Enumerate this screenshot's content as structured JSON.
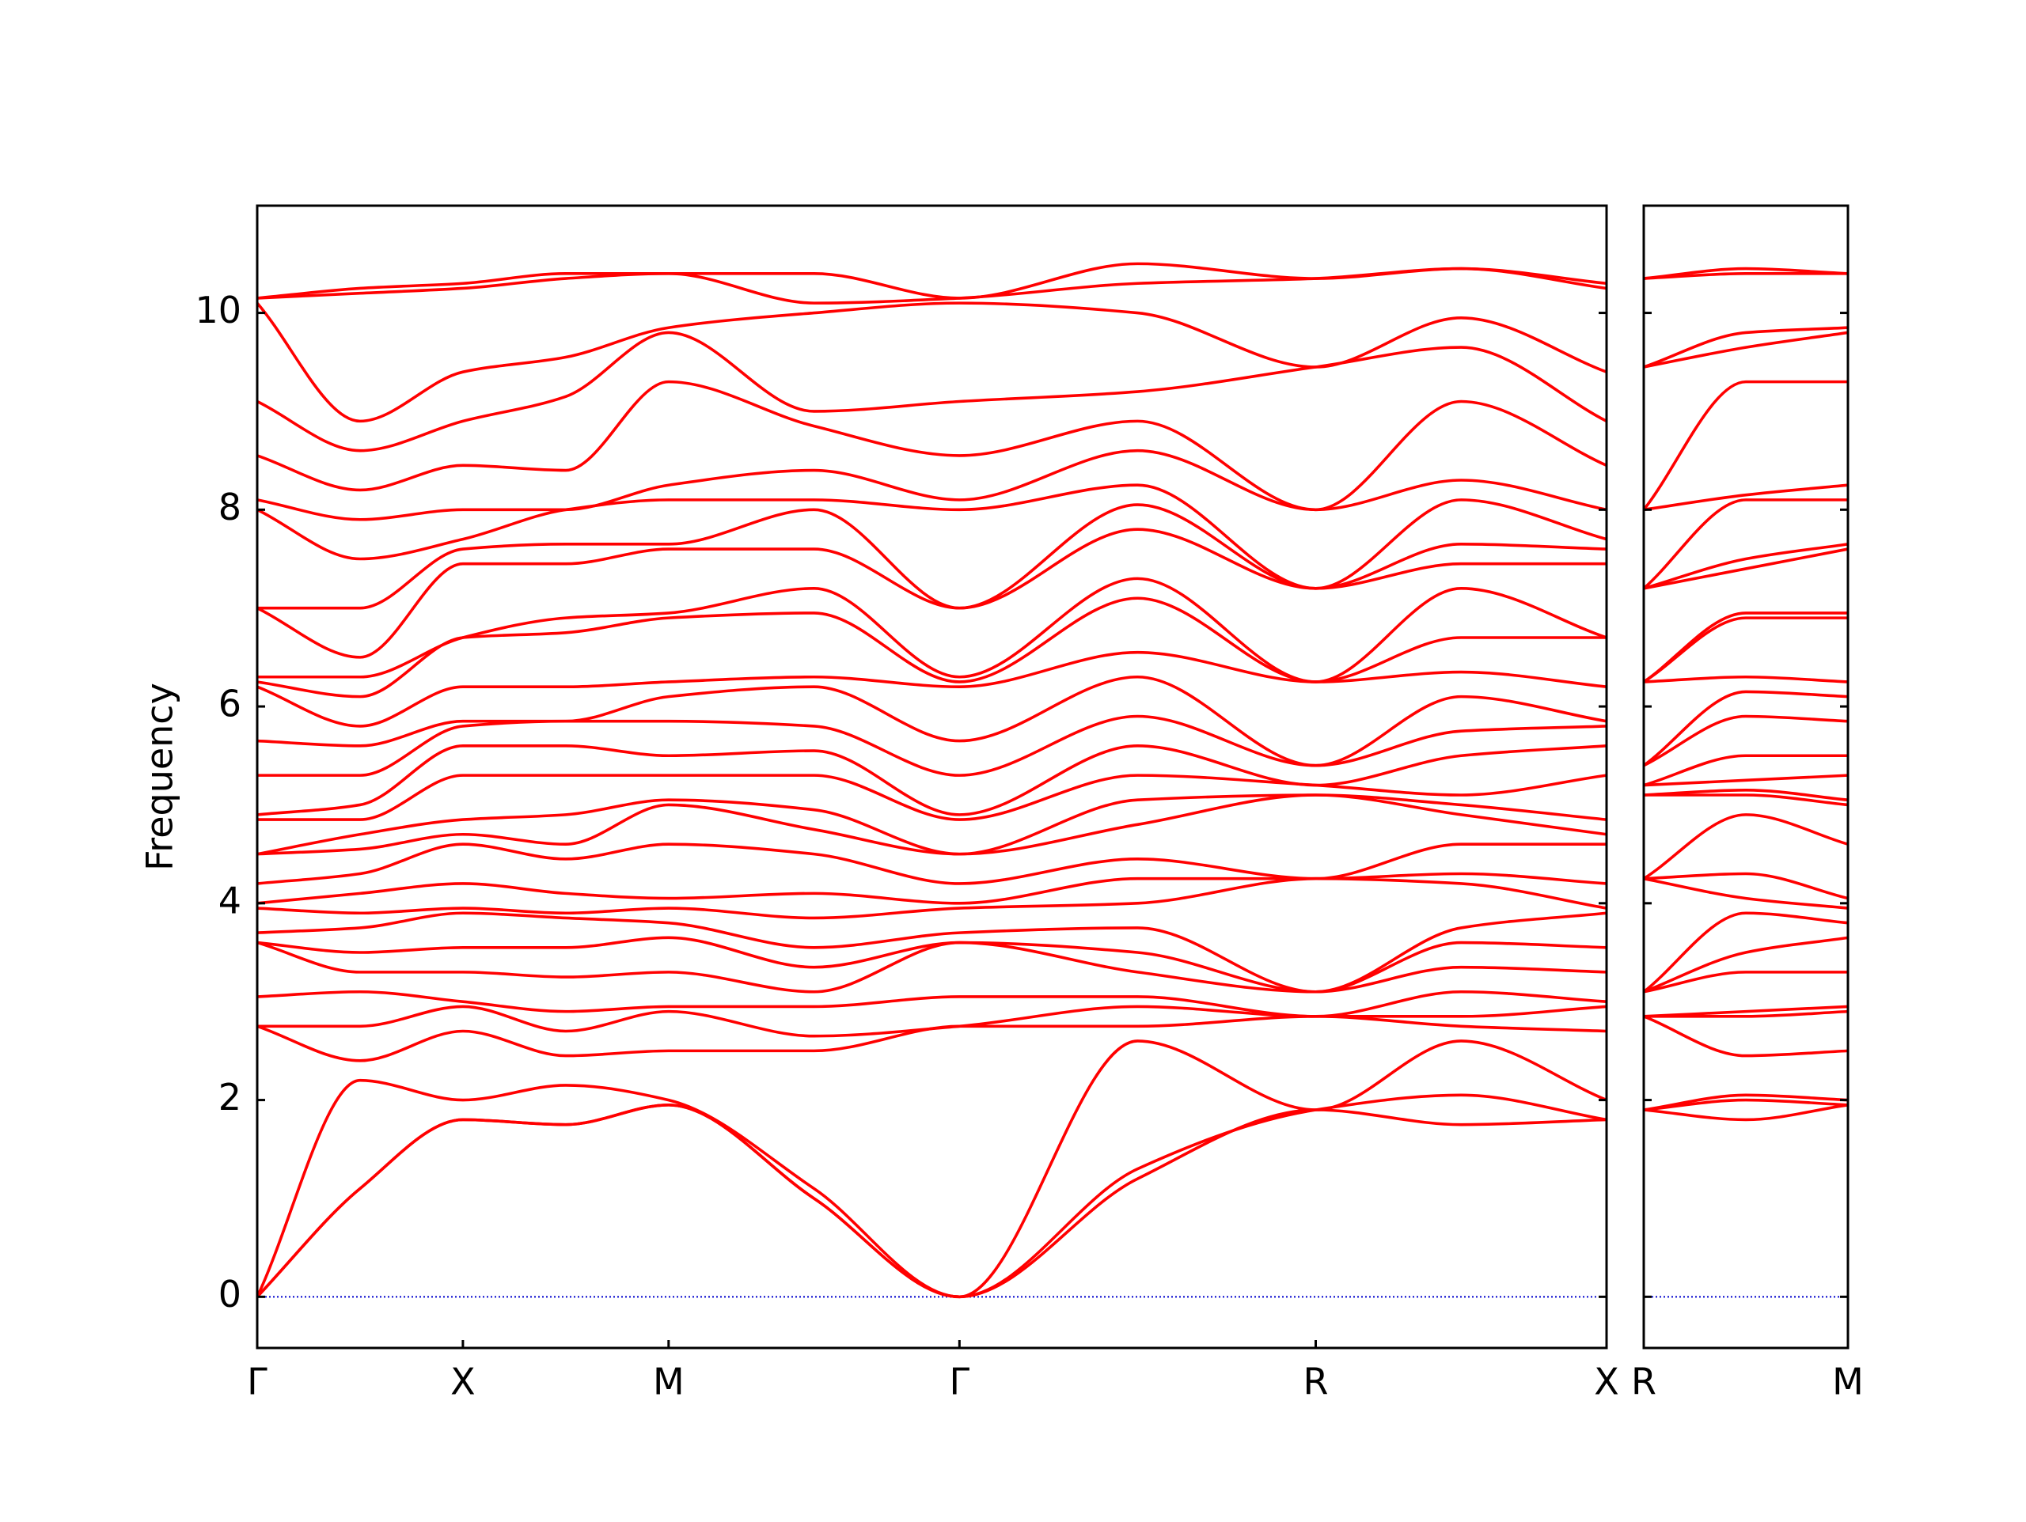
{
  "chart_data": [
    {
      "type": "line",
      "y_label": "Frequency",
      "color": "#ff0000",
      "x": [
        0,
        0.5,
        1,
        1.5,
        2,
        2.707,
        3.414,
        4.28,
        5.146,
        5.853,
        6.56
      ],
      "xlim": [
        0,
        6.56
      ],
      "xticks": [
        {
          "value": 0,
          "label": "Γ"
        },
        {
          "value": 1,
          "label": "X"
        },
        {
          "value": 2,
          "label": "M"
        },
        {
          "value": 3.414,
          "label": "Γ"
        },
        {
          "value": 5.146,
          "label": "R"
        },
        {
          "value": 6.56,
          "label": "X"
        }
      ],
      "ylim": [
        -0.52,
        11.09
      ],
      "yticks": [
        0,
        2,
        4,
        6,
        8,
        10
      ],
      "hline": {
        "value": 0,
        "color": "#0000cc",
        "style": "dotted"
      },
      "series": [
        {
          "values": [
            0,
            1.1,
            1.8,
            1.75,
            1.95,
            1.0,
            0,
            1.2,
            1.9,
            1.75,
            1.8
          ]
        },
        {
          "values": [
            0,
            1.1,
            1.8,
            1.75,
            1.95,
            1.0,
            0,
            1.3,
            1.9,
            2.05,
            1.8
          ]
        },
        {
          "values": [
            0,
            2.2,
            2.0,
            2.15,
            2.0,
            1.1,
            0,
            2.6,
            1.9,
            2.6,
            2.0
          ]
        },
        {
          "values": [
            2.75,
            2.4,
            2.7,
            2.45,
            2.5,
            2.5,
            2.75,
            2.75,
            2.85,
            2.75,
            2.7
          ]
        },
        {
          "values": [
            2.75,
            2.75,
            2.95,
            2.7,
            2.9,
            2.65,
            2.75,
            2.95,
            2.85,
            2.85,
            2.95
          ]
        },
        {
          "values": [
            3.05,
            3.1,
            3.0,
            2.9,
            2.95,
            2.95,
            3.05,
            3.05,
            2.85,
            3.1,
            3.0
          ]
        },
        {
          "values": [
            3.6,
            3.3,
            3.3,
            3.25,
            3.3,
            3.1,
            3.6,
            3.3,
            3.1,
            3.35,
            3.3
          ]
        },
        {
          "values": [
            3.6,
            3.5,
            3.55,
            3.55,
            3.65,
            3.35,
            3.6,
            3.5,
            3.1,
            3.6,
            3.55
          ]
        },
        {
          "values": [
            3.7,
            3.75,
            3.9,
            3.85,
            3.8,
            3.55,
            3.7,
            3.75,
            3.1,
            3.75,
            3.9
          ]
        },
        {
          "values": [
            3.95,
            3.9,
            3.95,
            3.9,
            3.95,
            3.85,
            3.95,
            4.0,
            4.25,
            4.2,
            3.95
          ]
        },
        {
          "values": [
            4.0,
            4.1,
            4.2,
            4.1,
            4.05,
            4.1,
            4.0,
            4.25,
            4.25,
            4.3,
            4.2
          ]
        },
        {
          "values": [
            4.2,
            4.3,
            4.6,
            4.45,
            4.6,
            4.5,
            4.2,
            4.45,
            4.25,
            4.6,
            4.6
          ]
        },
        {
          "values": [
            4.5,
            4.55,
            4.7,
            4.6,
            5.0,
            4.75,
            4.5,
            4.8,
            5.1,
            4.9,
            4.7
          ]
        },
        {
          "values": [
            4.5,
            4.7,
            4.85,
            4.9,
            5.05,
            4.95,
            4.5,
            5.05,
            5.1,
            5.0,
            4.85
          ]
        },
        {
          "values": [
            4.85,
            4.85,
            5.3,
            5.3,
            5.3,
            5.3,
            4.85,
            5.3,
            5.2,
            5.1,
            5.3
          ]
        },
        {
          "values": [
            4.9,
            5.0,
            5.6,
            5.6,
            5.5,
            5.55,
            4.9,
            5.6,
            5.2,
            5.5,
            5.6
          ]
        },
        {
          "values": [
            5.3,
            5.3,
            5.8,
            5.85,
            5.85,
            5.8,
            5.3,
            5.9,
            5.4,
            5.75,
            5.8
          ]
        },
        {
          "values": [
            5.65,
            5.6,
            5.85,
            5.85,
            6.1,
            6.2,
            5.65,
            6.3,
            5.4,
            6.1,
            5.85
          ]
        },
        {
          "values": [
            6.2,
            5.8,
            6.2,
            6.2,
            6.25,
            6.3,
            6.2,
            6.55,
            6.25,
            6.35,
            6.2
          ]
        },
        {
          "values": [
            6.25,
            6.1,
            6.7,
            6.75,
            6.9,
            6.95,
            6.25,
            7.1,
            6.25,
            6.7,
            6.7
          ]
        },
        {
          "values": [
            6.3,
            6.3,
            6.7,
            6.9,
            6.95,
            7.2,
            6.3,
            7.3,
            6.25,
            7.2,
            6.7
          ]
        },
        {
          "values": [
            7.0,
            6.5,
            7.45,
            7.45,
            7.6,
            7.6,
            7.0,
            7.8,
            7.2,
            7.45,
            7.45
          ]
        },
        {
          "values": [
            7.0,
            7.0,
            7.6,
            7.65,
            7.65,
            8.0,
            7.0,
            8.05,
            7.2,
            7.65,
            7.6
          ]
        },
        {
          "values": [
            8.0,
            7.5,
            7.7,
            8.0,
            8.1,
            8.1,
            8.0,
            8.25,
            7.2,
            8.1,
            7.7
          ]
        },
        {
          "values": [
            8.1,
            7.9,
            8.0,
            8.0,
            8.25,
            8.4,
            8.1,
            8.6,
            8.0,
            8.3,
            8.0
          ]
        },
        {
          "values": [
            8.55,
            8.2,
            8.45,
            8.4,
            9.3,
            8.85,
            8.55,
            8.9,
            8.0,
            9.1,
            8.45
          ]
        },
        {
          "values": [
            9.1,
            8.6,
            8.9,
            9.15,
            9.8,
            9.0,
            9.1,
            9.2,
            9.45,
            9.65,
            8.9
          ]
        },
        {
          "values": [
            10.1,
            8.9,
            9.4,
            9.55,
            9.85,
            10.0,
            10.1,
            10.0,
            9.45,
            9.95,
            9.4
          ]
        },
        {
          "values": [
            10.15,
            10.2,
            10.25,
            10.35,
            10.4,
            10.1,
            10.15,
            10.3,
            10.35,
            10.45,
            10.25
          ]
        },
        {
          "values": [
            10.15,
            10.25,
            10.3,
            10.4,
            10.4,
            10.4,
            10.15,
            10.5,
            10.35,
            10.45,
            10.3
          ]
        }
      ]
    },
    {
      "type": "line",
      "color": "#ff0000",
      "sharey": true,
      "x": [
        0,
        0.5,
        1
      ],
      "xlim": [
        0,
        1
      ],
      "xticks": [
        {
          "value": 0,
          "label": "R"
        },
        {
          "value": 1,
          "label": "M"
        }
      ],
      "hline": {
        "value": 0,
        "color": "#0000cc",
        "style": "dotted"
      },
      "series": [
        {
          "values": [
            1.9,
            1.8,
            1.95
          ]
        },
        {
          "values": [
            1.9,
            2.0,
            1.95
          ]
        },
        {
          "values": [
            1.9,
            2.05,
            2.0
          ]
        },
        {
          "values": [
            2.85,
            2.45,
            2.5
          ]
        },
        {
          "values": [
            2.85,
            2.85,
            2.9
          ]
        },
        {
          "values": [
            2.85,
            2.9,
            2.95
          ]
        },
        {
          "values": [
            3.1,
            3.3,
            3.3
          ]
        },
        {
          "values": [
            3.1,
            3.5,
            3.65
          ]
        },
        {
          "values": [
            3.1,
            3.9,
            3.8
          ]
        },
        {
          "values": [
            4.25,
            4.05,
            3.95
          ]
        },
        {
          "values": [
            4.25,
            4.3,
            4.05
          ]
        },
        {
          "values": [
            4.25,
            4.9,
            4.6
          ]
        },
        {
          "values": [
            5.1,
            5.1,
            5.0
          ]
        },
        {
          "values": [
            5.1,
            5.15,
            5.05
          ]
        },
        {
          "values": [
            5.2,
            5.25,
            5.3
          ]
        },
        {
          "values": [
            5.2,
            5.5,
            5.5
          ]
        },
        {
          "values": [
            5.4,
            5.9,
            5.85
          ]
        },
        {
          "values": [
            5.4,
            6.15,
            6.1
          ]
        },
        {
          "values": [
            6.25,
            6.3,
            6.25
          ]
        },
        {
          "values": [
            6.25,
            6.9,
            6.9
          ]
        },
        {
          "values": [
            6.25,
            6.95,
            6.95
          ]
        },
        {
          "values": [
            7.2,
            7.4,
            7.6
          ]
        },
        {
          "values": [
            7.2,
            7.5,
            7.65
          ]
        },
        {
          "values": [
            7.2,
            8.1,
            8.1
          ]
        },
        {
          "values": [
            8.0,
            8.15,
            8.25
          ]
        },
        {
          "values": [
            8.0,
            9.3,
            9.3
          ]
        },
        {
          "values": [
            9.45,
            9.65,
            9.8
          ]
        },
        {
          "values": [
            9.45,
            9.8,
            9.85
          ]
        },
        {
          "values": [
            10.35,
            10.4,
            10.4
          ]
        },
        {
          "values": [
            10.35,
            10.45,
            10.4
          ]
        }
      ]
    }
  ]
}
